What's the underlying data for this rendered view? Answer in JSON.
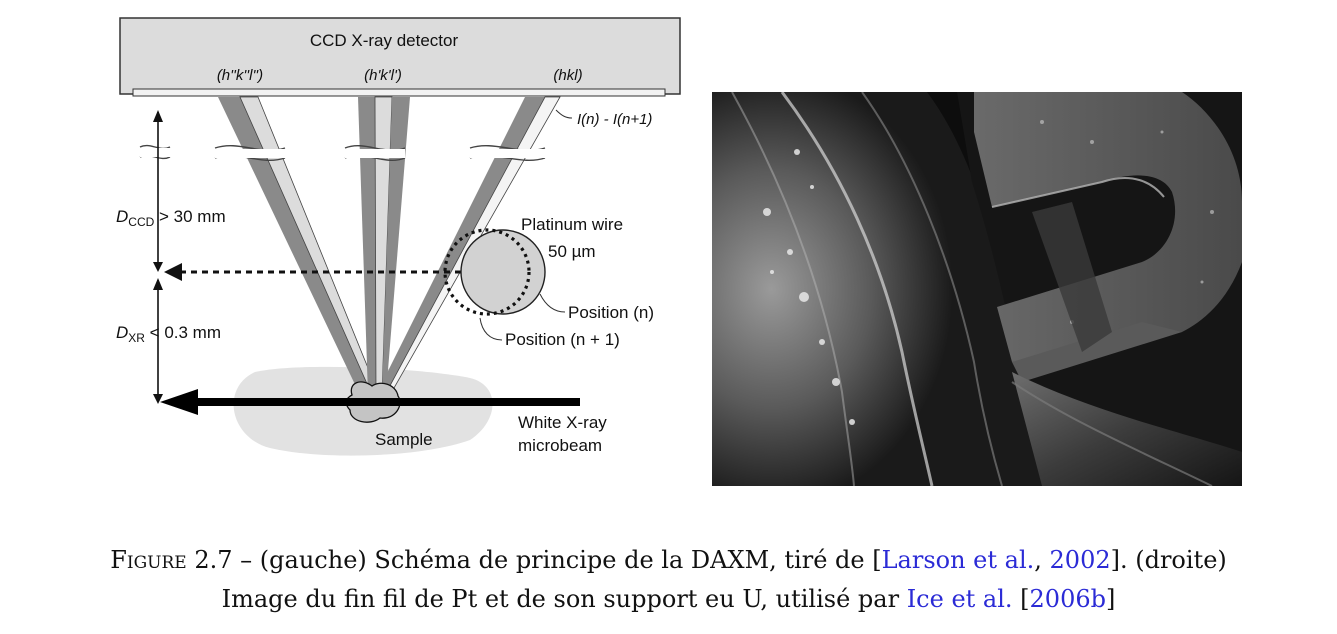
{
  "diagram": {
    "detector_label": "CCD X-ray detector",
    "reflection_1": "(h''k''l'')",
    "reflection_2": "(h'k'l')",
    "reflection_3": "(hkl)",
    "intensity_diff": "I(n) - I(n+1)",
    "d_ccd_main": "D",
    "d_ccd_sub": "CCD",
    "d_ccd_rest": " > 30 mm",
    "d_xr_main": "D",
    "d_xr_sub": "XR",
    "d_xr_rest": " < 0.3 mm",
    "wire_label_1": "Platinum wire",
    "wire_label_2": "50 µm",
    "position_n": "Position (n)",
    "position_n1": "Position (n + 1)",
    "sample_label": "Sample",
    "beam_label_1": "White X-ray",
    "beam_label_2": "microbeam"
  },
  "caption": {
    "figure_word": "Figure",
    "figure_number": "2.7 –",
    "line1_part1": "(gauche) Schéma de principe de la DAXM, tiré de [",
    "cite1_authors": "Larson et al.",
    "line1_sep": ", ",
    "cite1_year": "2002",
    "line1_part2": "]. (droite)",
    "line2_part1": "Image du fin fil de Pt et de son support eu U, utilisé par ",
    "cite2_authors": "Ice et al.",
    "line2_part2": " [",
    "cite2_year": "2006b",
    "line2_part3": "]"
  }
}
